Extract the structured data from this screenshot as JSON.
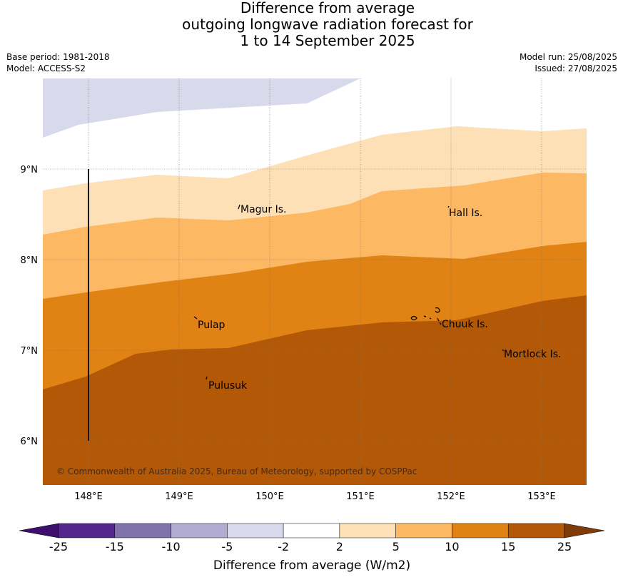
{
  "title": {
    "line1": "Difference from average",
    "line2": "outgoing longwave radiation forecast for",
    "line3": "1 to 14 September 2025"
  },
  "meta": {
    "base_period": "Base period: 1981-2018",
    "model": "Model: ACCESS-S2",
    "model_run": "Model run: 25/08/2025",
    "issued": "Issued: 27/08/2025"
  },
  "map": {
    "lon_labels": [
      "148°E",
      "149°E",
      "150°E",
      "151°E",
      "152°E",
      "153°E"
    ],
    "lat_labels": [
      "9°N",
      "8°N",
      "7°N",
      "6°N"
    ],
    "places": [
      "Magur Is.",
      "Hall Is.",
      "Pulap",
      "Chuuk Is.",
      "Mortlock Is.",
      "Pulusuk"
    ],
    "copyright": "© Commonwealth of Australia 2025, Bureau of Meteorology, supported by COSPPac"
  },
  "colorbar": {
    "ticks": [
      "-25",
      "-15",
      "-10",
      "-5",
      "-2",
      "2",
      "5",
      "10",
      "15",
      "25"
    ],
    "colors": [
      "#3f0f70",
      "#54278f",
      "#8073ac",
      "#b2abd2",
      "#d8daeb",
      "#ffffff",
      "#fee0b6",
      "#fdb863",
      "#e08214",
      "#b35806",
      "#7f3b08"
    ],
    "label": "Difference from average (W/m2)"
  }
}
